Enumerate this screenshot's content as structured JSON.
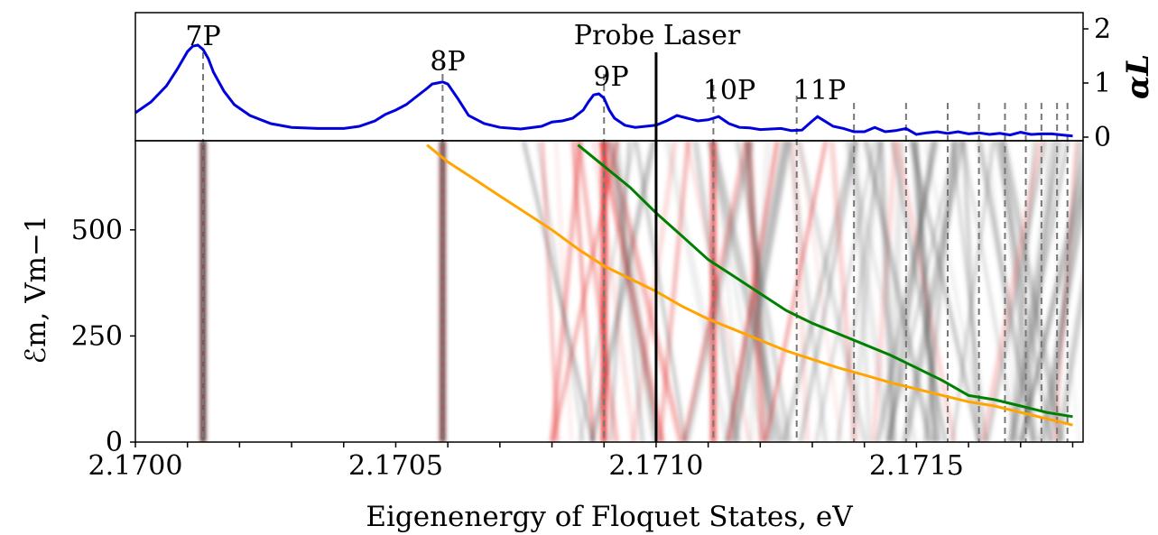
{
  "chart_data": [
    {
      "type": "line",
      "panel": "top",
      "ylabel": "αL",
      "ylim": [
        0,
        2.3
      ],
      "yticks": [
        "0",
        "1",
        "2"
      ],
      "probe_label": "Probe Laser",
      "probe_energy": 2.171,
      "peaks": [
        {
          "label": "7P",
          "x": 2.17013
        },
        {
          "label": "8P",
          "x": 2.17059
        },
        {
          "label": "9P",
          "x": 2.1709
        },
        {
          "label": "10P",
          "x": 2.17111
        },
        {
          "label": "11P",
          "x": 2.17127
        },
        {
          "label": "",
          "x": 2.17138
        },
        {
          "label": "",
          "x": 2.17148
        },
        {
          "label": "",
          "x": 2.17156
        },
        {
          "label": "",
          "x": 2.17162
        },
        {
          "label": "",
          "x": 2.17167
        },
        {
          "label": "",
          "x": 2.17171
        },
        {
          "label": "",
          "x": 2.17174
        },
        {
          "label": "",
          "x": 2.17177
        },
        {
          "label": "",
          "x": 2.17179
        }
      ],
      "series": [
        {
          "color": "#0000dd",
          "x": [
            2.17,
            2.17003,
            2.17006,
            2.17008,
            2.1701,
            2.17011,
            2.17012,
            2.17013,
            2.17014,
            2.17015,
            2.17017,
            2.17019,
            2.17022,
            2.17026,
            2.1703,
            2.17035,
            2.1704,
            2.17043,
            2.17046,
            2.17048,
            2.1705,
            2.17052,
            2.17054,
            2.17056,
            2.17057,
            2.17058,
            2.17059,
            2.1706,
            2.17062,
            2.17064,
            2.17067,
            2.1707,
            2.17074,
            2.17078,
            2.1708,
            2.17082,
            2.17084,
            2.17086,
            2.17087,
            2.17088,
            2.17089,
            2.1709,
            2.17091,
            2.17092,
            2.17094,
            2.17096,
            2.17098,
            2.171,
            2.17102,
            2.17104,
            2.17106,
            2.17108,
            2.1711,
            2.17111,
            2.17112,
            2.17114,
            2.17116,
            2.17118,
            2.1712,
            2.17122,
            2.17124,
            2.17126,
            2.17128,
            2.1713,
            2.17131,
            2.17132,
            2.17134,
            2.17136,
            2.17138,
            2.1714,
            2.17142,
            2.17144,
            2.17146,
            2.17148,
            2.1715,
            2.17152,
            2.17154,
            2.17156,
            2.17158,
            2.1716,
            2.17162,
            2.17164,
            2.17166,
            2.17168,
            2.1717,
            2.17172,
            2.17174,
            2.17176,
            2.17178,
            2.1718
          ],
          "y": [
            0.45,
            0.65,
            0.95,
            1.25,
            1.58,
            1.68,
            1.7,
            1.62,
            1.45,
            1.2,
            0.85,
            0.6,
            0.4,
            0.25,
            0.18,
            0.16,
            0.16,
            0.2,
            0.3,
            0.42,
            0.5,
            0.6,
            0.75,
            0.9,
            0.98,
            1.0,
            1.02,
            0.98,
            0.7,
            0.4,
            0.25,
            0.18,
            0.15,
            0.2,
            0.28,
            0.3,
            0.35,
            0.5,
            0.65,
            0.78,
            0.8,
            0.72,
            0.5,
            0.35,
            0.22,
            0.18,
            0.2,
            0.22,
            0.3,
            0.4,
            0.35,
            0.3,
            0.32,
            0.35,
            0.38,
            0.25,
            0.18,
            0.17,
            0.14,
            0.15,
            0.16,
            0.12,
            0.13,
            0.3,
            0.38,
            0.32,
            0.2,
            0.16,
            0.1,
            0.1,
            0.18,
            0.1,
            0.12,
            0.16,
            0.05,
            0.08,
            0.1,
            0.07,
            0.1,
            0.06,
            0.08,
            0.05,
            0.07,
            0.04,
            0.09,
            0.05,
            0.06,
            0.06,
            0.04,
            0.02
          ]
        }
      ]
    },
    {
      "type": "line",
      "panel": "bottom",
      "xlabel": "Eigenenergy of Floquet States, eV",
      "ylabel": "ℰm, Vm−1",
      "xlim": [
        2.17,
        2.17182
      ],
      "ylim": [
        0,
        710
      ],
      "xticks": [
        "2.1700",
        "2.1705",
        "2.1710",
        "2.1715"
      ],
      "yticks": [
        "0",
        "250",
        "500"
      ],
      "series": [
        {
          "color": "#ffa500",
          "x": [
            2.17056,
            2.1706,
            2.17065,
            2.1707,
            2.17075,
            2.1708,
            2.17085,
            2.1709,
            2.17095,
            2.171,
            2.17105,
            2.1711,
            2.17115,
            2.1712,
            2.17125,
            2.1713,
            2.17135,
            2.1714,
            2.17145,
            2.1715,
            2.17155,
            2.1716,
            2.17165,
            2.1717,
            2.17175,
            2.1718
          ],
          "y": [
            700,
            660,
            620,
            580,
            540,
            500,
            455,
            415,
            385,
            355,
            320,
            290,
            265,
            240,
            215,
            195,
            175,
            158,
            140,
            125,
            110,
            95,
            85,
            70,
            55,
            40
          ]
        },
        {
          "color": "#008000",
          "x": [
            2.17085,
            2.1709,
            2.17095,
            2.171,
            2.17105,
            2.1711,
            2.17115,
            2.1712,
            2.17125,
            2.1713,
            2.17135,
            2.1714,
            2.17145,
            2.1715,
            2.17155,
            2.1716,
            2.17165,
            2.1717,
            2.17175,
            2.1718
          ],
          "y": [
            700,
            650,
            600,
            540,
            485,
            430,
            390,
            350,
            310,
            280,
            255,
            230,
            205,
            175,
            145,
            110,
            100,
            85,
            70,
            60
          ]
        }
      ]
    }
  ]
}
